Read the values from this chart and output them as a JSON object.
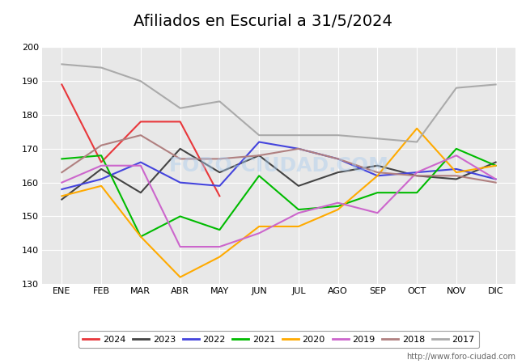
{
  "title": "Afiliados en Escurial a 31/5/2024",
  "ylim": [
    130,
    200
  ],
  "yticks": [
    130,
    140,
    150,
    160,
    170,
    180,
    190,
    200
  ],
  "months": [
    "ENE",
    "FEB",
    "MAR",
    "ABR",
    "MAY",
    "JUN",
    "JUL",
    "AGO",
    "SEP",
    "OCT",
    "NOV",
    "DIC"
  ],
  "series": {
    "2024": {
      "color": "#e8373b",
      "data": [
        189,
        166,
        178,
        178,
        156,
        null,
        null,
        null,
        null,
        null,
        null,
        null
      ]
    },
    "2023": {
      "color": "#444444",
      "data": [
        155,
        164,
        157,
        170,
        163,
        168,
        159,
        163,
        165,
        162,
        161,
        166
      ]
    },
    "2022": {
      "color": "#4444dd",
      "data": [
        158,
        161,
        166,
        160,
        159,
        172,
        170,
        167,
        162,
        163,
        164,
        161
      ]
    },
    "2021": {
      "color": "#00bb00",
      "data": [
        167,
        168,
        144,
        150,
        146,
        162,
        152,
        153,
        157,
        157,
        170,
        165
      ]
    },
    "2020": {
      "color": "#ffaa00",
      "data": [
        156,
        159,
        144,
        132,
        138,
        147,
        147,
        152,
        162,
        176,
        163,
        165
      ]
    },
    "2019": {
      "color": "#cc66cc",
      "data": [
        160,
        165,
        165,
        141,
        141,
        145,
        151,
        154,
        151,
        163,
        168,
        161
      ]
    },
    "2018": {
      "color": "#b08080",
      "data": [
        163,
        171,
        174,
        167,
        167,
        168,
        170,
        167,
        163,
        162,
        162,
        160
      ]
    },
    "2017": {
      "color": "#aaaaaa",
      "data": [
        195,
        194,
        190,
        182,
        184,
        174,
        174,
        174,
        173,
        172,
        188,
        189
      ]
    }
  },
  "legend_order": [
    "2024",
    "2023",
    "2022",
    "2021",
    "2020",
    "2019",
    "2018",
    "2017"
  ],
  "watermark": "FORO-CIUDAD.COM",
  "url": "http://www.foro-ciudad.com",
  "bg_color": "#ffffff",
  "plot_bg": "#e8e8e8",
  "grid_color": "#ffffff",
  "header_color": "#5588cc",
  "title_fontsize": 14
}
